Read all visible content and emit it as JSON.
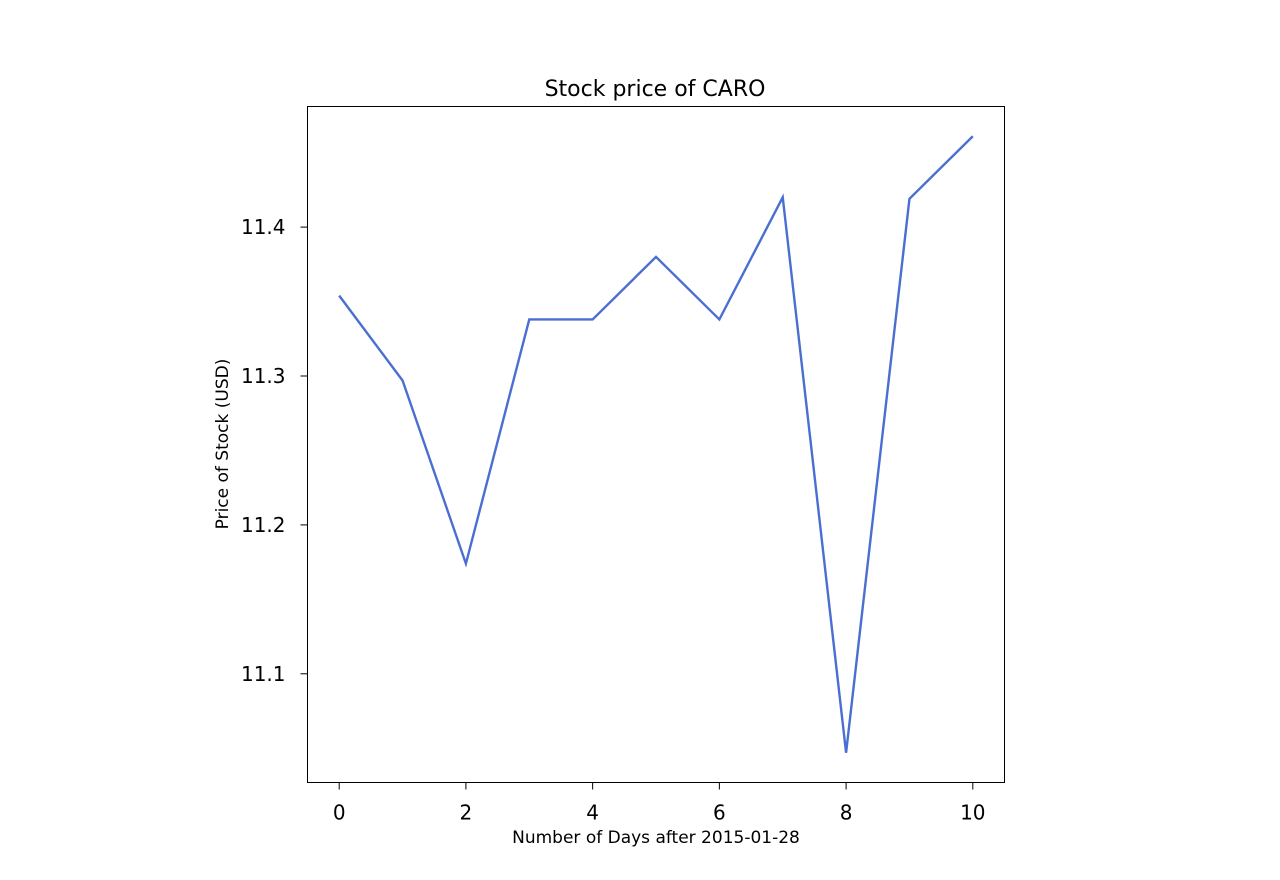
{
  "chart_data": {
    "type": "line",
    "title": "Stock price of CARO",
    "xlabel": "Number of Days after 2015-01-28",
    "ylabel": "Price of Stock (USD)",
    "x": [
      0,
      1,
      2,
      3,
      4,
      5,
      6,
      7,
      8,
      9,
      10
    ],
    "series": [
      {
        "values": [
          11.354,
          11.297,
          11.174,
          11.338,
          11.338,
          11.38,
          11.338,
          11.42,
          11.047,
          11.419,
          11.461
        ],
        "color": "#4a6fd0"
      }
    ],
    "xticks": [
      "0",
      "2",
      "4",
      "6",
      "8",
      "10"
    ],
    "yticks": [
      "11.1",
      "11.2",
      "11.3",
      "11.4"
    ],
    "xlim": [
      -0.5,
      10.5
    ],
    "ylim": [
      11.027,
      11.481
    ],
    "grid": false,
    "legend": "none"
  }
}
